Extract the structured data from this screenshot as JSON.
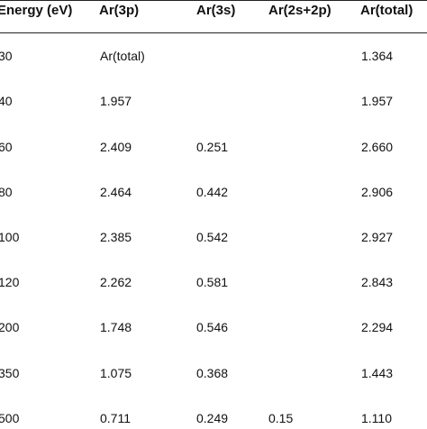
{
  "table": {
    "headers": [
      "Energy (eV)",
      "Ar(3p)",
      "Ar(3s)",
      "Ar(2s+2p)",
      "Ar(total)"
    ],
    "rows": [
      [
        "30",
        "Ar(total)",
        "",
        "",
        "1.364"
      ],
      [
        "40",
        "1.957",
        "",
        "",
        "1.957"
      ],
      [
        "60",
        "2.409",
        "0.251",
        "",
        "2.660"
      ],
      [
        "80",
        "2.464",
        "0.442",
        "",
        "2.906"
      ],
      [
        "100",
        "2.385",
        "0.542",
        "",
        "2.927"
      ],
      [
        "120",
        "2.262",
        "0.581",
        "",
        "2.843"
      ],
      [
        "200",
        "1.748",
        "0.546",
        "",
        "2.294"
      ],
      [
        "350",
        "1.075",
        "0.368",
        "",
        "1.443"
      ],
      [
        "500",
        "0.711",
        "0.249",
        "0.15",
        "1.110"
      ]
    ]
  }
}
